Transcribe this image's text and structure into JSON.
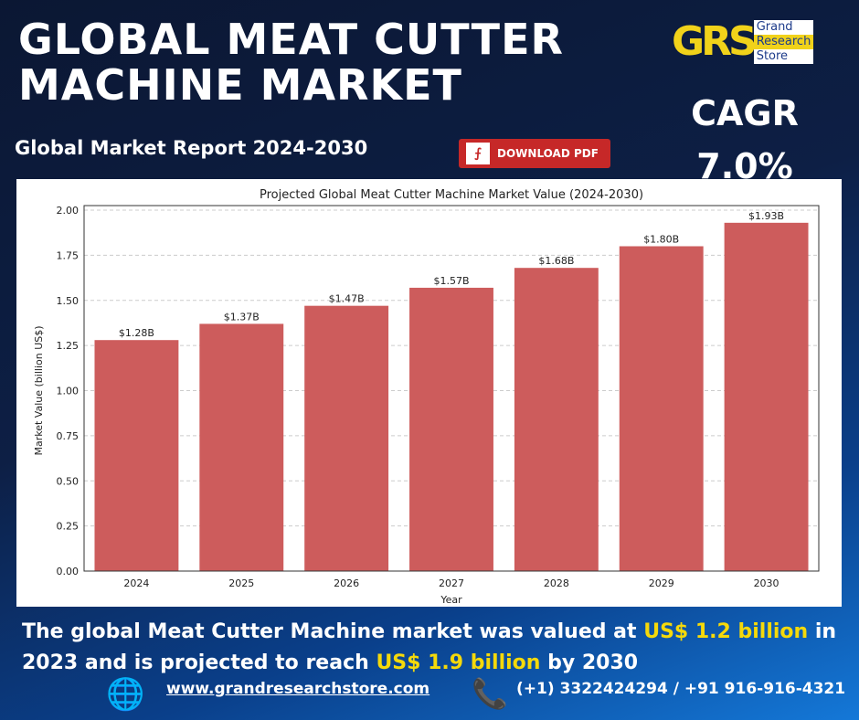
{
  "header": {
    "title_line1": "GLOBAL MEAT CUTTER",
    "title_line2": "MACHINE MARKET",
    "subtitle": "Global Market Report 2024-2030",
    "download_label": "DOWNLOAD PDF",
    "download_icon": "pdf-icon"
  },
  "logo": {
    "mark": "GRS",
    "line1": "Grand",
    "line2": "Research",
    "line3": "Store"
  },
  "cagr": {
    "label": "CAGR",
    "value": "7.0%"
  },
  "chart_data": {
    "type": "bar",
    "title": "Projected Global Meat Cutter Machine Market Value (2024-2030)",
    "xlabel": "Year",
    "ylabel": "Market Value (billion US$)",
    "categories": [
      "2024",
      "2025",
      "2026",
      "2027",
      "2028",
      "2029",
      "2030"
    ],
    "values": [
      1.28,
      1.37,
      1.47,
      1.57,
      1.68,
      1.8,
      1.93
    ],
    "data_labels": [
      "$1.28B",
      "$1.37B",
      "$1.47B",
      "$1.57B",
      "$1.68B",
      "$1.80B",
      "$1.93B"
    ],
    "yticks": [
      "0.00",
      "0.25",
      "0.50",
      "0.75",
      "1.00",
      "1.25",
      "1.50",
      "1.75",
      "2.00"
    ],
    "ylim": [
      0,
      2.0
    ],
    "grid": "horizontal dashed",
    "bar_color": "#cd5c5c"
  },
  "description": {
    "part1": "The global Meat Cutter Machine market was valued at ",
    "hl1": "US$ 1.2 billion",
    "part2": " in 2023 and is projected to reach ",
    "hl2": "US$ 1.9 billion",
    "part3": " by 2030"
  },
  "footer": {
    "website": "www.grandresearchstore.com",
    "phone": "(+1) 3322424294 / +91 916-916-4321",
    "globe_icon": "globe-icon",
    "phone_icon": "phone-icon"
  }
}
